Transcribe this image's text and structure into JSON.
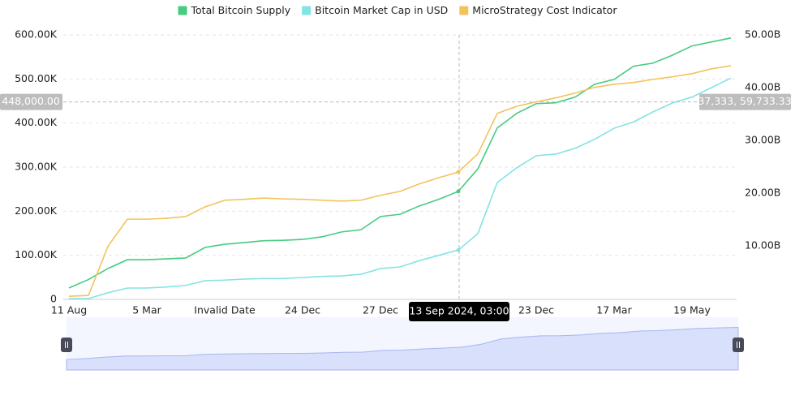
{
  "chart_data": {
    "type": "line",
    "categories": [
      "11 Aug",
      null,
      null,
      null,
      "5 Mar",
      null,
      null,
      null,
      "Invalid Date",
      null,
      null,
      null,
      "24 Dec",
      null,
      null,
      null,
      "27 Dec",
      null,
      null,
      null,
      null,
      null,
      null,
      null,
      "23 Dec",
      null,
      null,
      null,
      "17 Mar",
      null,
      null,
      null,
      "19 May",
      null,
      null
    ],
    "series": [
      {
        "name": "Total Bitcoin Supply",
        "color": "#45cc7f",
        "values": [
          26,
          45,
          70,
          90,
          90,
          92,
          94,
          118,
          125,
          129,
          133,
          134,
          136,
          142,
          153,
          158,
          188,
          193,
          212,
          227,
          245,
          296,
          389,
          422,
          444,
          446,
          459,
          488,
          499,
          529,
          536,
          554,
          575,
          584,
          593
        ]
      },
      {
        "name": "Bitcoin Market Cap in USD",
        "color": "#84e3e3",
        "axis": "y2",
        "values": [
          0,
          0,
          1.1,
          2.0,
          2.0,
          2.2,
          2.5,
          3.4,
          3.5,
          3.7,
          3.8,
          3.8,
          4.0,
          4.2,
          4.3,
          4.6,
          5.7,
          6.0,
          7.2,
          8.2,
          9.2,
          12.3,
          22.0,
          24.8,
          27.1,
          27.4,
          28.5,
          30.2,
          32.3,
          33.5,
          35.4,
          37.1,
          38.2,
          40.0,
          41.8
        ]
      },
      {
        "name": "MicroStrategy Cost Indicator",
        "color": "#f2c35c",
        "values": [
          7,
          9,
          120,
          182,
          182,
          184,
          188,
          210,
          225,
          227,
          230,
          228,
          227,
          225,
          223,
          225,
          236,
          245,
          262,
          276,
          289,
          330,
          422,
          438,
          448,
          457,
          468,
          481,
          488,
          492,
          499,
          505,
          512,
          523,
          530
        ]
      }
    ],
    "ylim": [
      0,
      600
    ],
    "yticks": [
      0,
      {
        "value": 100,
        "label": "100.00K"
      },
      {
        "value": 200,
        "label": "200.00K"
      },
      {
        "value": 300,
        "label": "300.00K"
      },
      {
        "value": 400,
        "label": "400.00K"
      },
      {
        "value": 500,
        "label": "500.00K"
      },
      {
        "value": 600,
        "label": "600.00K"
      }
    ],
    "y2lim": [
      0,
      50
    ],
    "y2ticks": [
      {
        "value": 10,
        "label": "10.00B"
      },
      {
        "value": 20,
        "label": "20.00B"
      },
      {
        "value": 30,
        "label": "30.00B"
      },
      {
        "value": 40,
        "label": "40.00B"
      },
      {
        "value": 50,
        "label": "50.00B"
      }
    ],
    "grid": true,
    "legend": "top",
    "crosshair": {
      "x_label": "13 Sep 2024, 03:00",
      "y": {
        "value": 448,
        "label": "448,000.00"
      },
      "y2_label": "37,333, 59,733.33"
    }
  }
}
